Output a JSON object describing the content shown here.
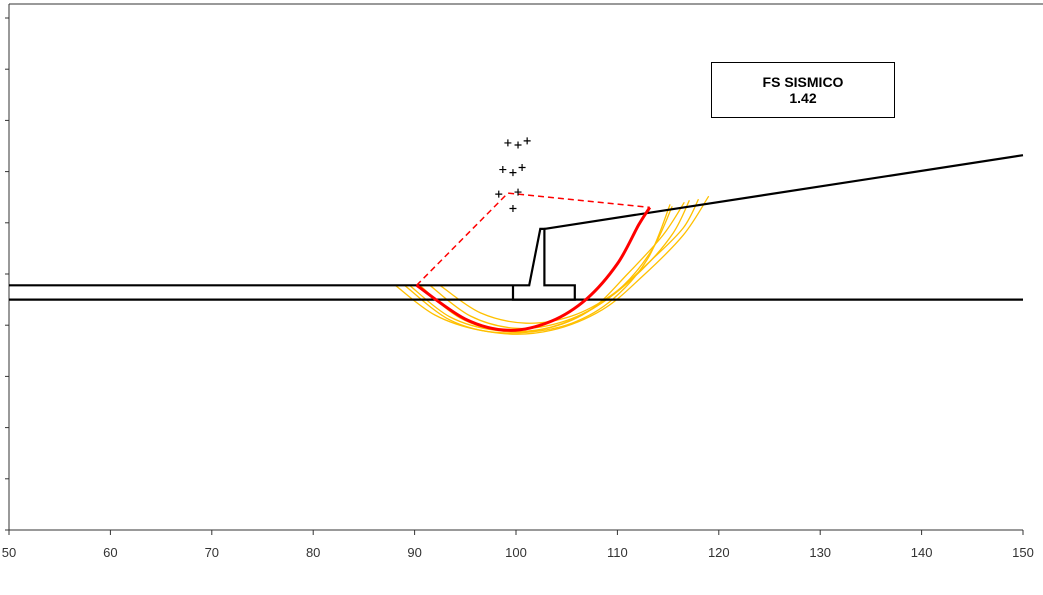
{
  "result_box": {
    "title": "FS  SISMICO",
    "value": "1.42"
  },
  "chart_data": {
    "type": "line",
    "title": "",
    "xlabel": "",
    "ylabel": "",
    "xlim": [
      50,
      150
    ],
    "ylim": [
      -20,
      30
    ],
    "xticks": [
      50,
      60,
      70,
      80,
      90,
      100,
      110,
      120,
      130,
      140,
      150
    ],
    "xtick_labels": [
      "50",
      "60",
      "70",
      "80",
      "90",
      "100",
      "110",
      "120",
      "130",
      "140",
      "150"
    ],
    "yticks": [
      -20,
      -15,
      -10,
      -5,
      0,
      5,
      10,
      15,
      20,
      25,
      30
    ],
    "ytick_labels": [],
    "grid": false,
    "colors": {
      "geometry": "#000000",
      "critical_surface": "#ff0000",
      "trial_surfaces": "#ffc000",
      "critical_radius": "#ff0000",
      "centers": "#000000"
    },
    "geometry_lines": [
      [
        [
          50,
          3.9
        ],
        [
          99.7,
          3.9
        ],
        [
          99.7,
          2.5
        ],
        [
          105.8,
          2.5
        ],
        [
          105.8,
          3.9
        ],
        [
          102.8,
          3.9
        ],
        [
          102.8,
          9.4
        ],
        [
          102.4,
          9.4
        ],
        [
          101.3,
          3.9
        ],
        [
          99.7,
          3.9
        ]
      ],
      [
        [
          50,
          2.5
        ],
        [
          150,
          2.5
        ]
      ],
      [
        [
          102.8,
          9.4
        ],
        [
          150,
          16.6
        ]
      ]
    ],
    "critical_surface": {
      "center": [
        99.2,
        12.9
      ],
      "points": [
        [
          90.2,
          3.9
        ],
        [
          95.0,
          0.6
        ],
        [
          99.3,
          -0.5
        ],
        [
          103.5,
          0.4
        ],
        [
          107.0,
          2.6
        ],
        [
          110.0,
          6.0
        ],
        [
          112.1,
          9.8
        ],
        [
          113.2,
          11.5
        ]
      ]
    },
    "critical_radius_lines": [
      [
        [
          90.2,
          3.9
        ],
        [
          99.2,
          12.9
        ],
        [
          113.2,
          11.5
        ]
      ]
    ],
    "trial_surfaces": [
      [
        [
          88.1,
          3.9
        ],
        [
          92.0,
          1.0
        ],
        [
          96.5,
          -0.5
        ],
        [
          101.0,
          -0.7
        ],
        [
          105.5,
          0.2
        ],
        [
          109.5,
          2.5
        ],
        [
          113.0,
          6.5
        ],
        [
          115.2,
          11.8
        ]
      ],
      [
        [
          89.5,
          3.9
        ],
        [
          93.5,
          0.8
        ],
        [
          98.0,
          -0.5
        ],
        [
          102.5,
          -0.4
        ],
        [
          106.5,
          1.0
        ],
        [
          110.5,
          3.8
        ],
        [
          113.5,
          7.5
        ],
        [
          115.4,
          11.6
        ]
      ],
      [
        [
          90.5,
          3.9
        ],
        [
          94.5,
          0.7
        ],
        [
          99.0,
          -0.6
        ],
        [
          103.5,
          -0.2
        ],
        [
          107.5,
          1.6
        ],
        [
          111.0,
          5.0
        ],
        [
          114.5,
          8.8
        ],
        [
          116.6,
          12.0
        ]
      ],
      [
        [
          91.5,
          3.9
        ],
        [
          95.5,
          0.9
        ],
        [
          100.0,
          -0.3
        ],
        [
          104.5,
          0.3
        ],
        [
          108.5,
          2.2
        ],
        [
          112.5,
          5.5
        ],
        [
          115.5,
          9.0
        ],
        [
          117.1,
          12.2
        ]
      ],
      [
        [
          92.5,
          3.9
        ],
        [
          96.5,
          1.2
        ],
        [
          101.0,
          0.2
        ],
        [
          105.5,
          0.9
        ],
        [
          109.5,
          3.0
        ],
        [
          113.5,
          6.5
        ],
        [
          116.5,
          9.5
        ],
        [
          118.0,
          12.3
        ]
      ],
      [
        [
          89.0,
          3.9
        ],
        [
          93.5,
          0.5
        ],
        [
          98.5,
          -0.8
        ],
        [
          103.5,
          -0.5
        ],
        [
          108.5,
          1.5
        ],
        [
          112.5,
          4.8
        ],
        [
          116.5,
          8.8
        ],
        [
          119.0,
          12.6
        ]
      ]
    ],
    "trial_centers": [
      [
        99.2,
        17.8
      ],
      [
        100.2,
        17.6
      ],
      [
        101.1,
        18.0
      ],
      [
        98.7,
        15.2
      ],
      [
        99.7,
        14.9
      ],
      [
        100.6,
        15.4
      ],
      [
        98.3,
        12.8
      ],
      [
        100.2,
        13.0
      ],
      [
        99.7,
        11.4
      ]
    ]
  }
}
